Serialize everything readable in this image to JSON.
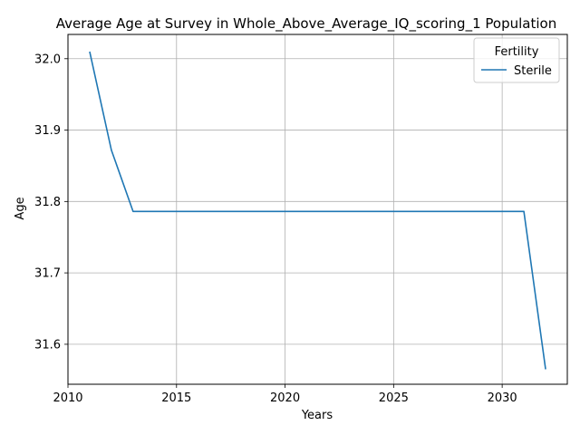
{
  "chart_data": {
    "type": "line",
    "title": "Average Age at Survey in Whole_Above_Average_IQ_scoring_1 Population",
    "xlabel": "Years",
    "ylabel": "Age",
    "xlim": [
      2010,
      2033
    ],
    "ylim": [
      31.544,
      32.034
    ],
    "xticks": [
      2010,
      2015,
      2020,
      2025,
      2030
    ],
    "yticks": [
      31.6,
      31.7,
      31.8,
      31.9,
      32.0
    ],
    "xtick_labels": [
      "2010",
      "2015",
      "2020",
      "2025",
      "2030"
    ],
    "ytick_labels": [
      "31.6",
      "31.7",
      "31.8",
      "31.9",
      "32.0"
    ],
    "grid": true,
    "legend": {
      "title": "Fertility",
      "placement": "upper-right"
    },
    "series": [
      {
        "name": "Sterile",
        "color": "#1f77b4",
        "x": [
          2011,
          2012,
          2013,
          2014,
          2015,
          2016,
          2017,
          2018,
          2019,
          2020,
          2021,
          2022,
          2023,
          2024,
          2025,
          2026,
          2027,
          2028,
          2029,
          2030,
          2031,
          2032
        ],
        "y": [
          32.01,
          31.872,
          31.786,
          31.786,
          31.786,
          31.786,
          31.786,
          31.786,
          31.786,
          31.786,
          31.786,
          31.786,
          31.786,
          31.786,
          31.786,
          31.786,
          31.786,
          31.786,
          31.786,
          31.786,
          31.786,
          31.565
        ]
      }
    ]
  }
}
